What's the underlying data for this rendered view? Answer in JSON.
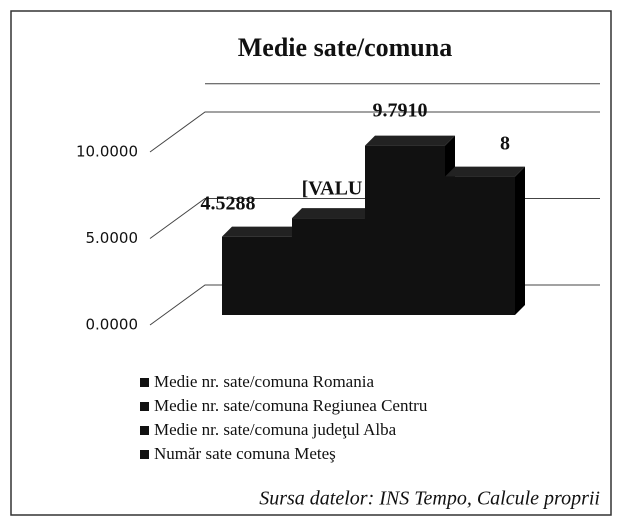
{
  "chart_data": {
    "type": "bar3d",
    "title": "Medie sate/comuna",
    "series": [
      {
        "name": "Medie nr. sate/comuna Romania",
        "color": "#111111",
        "values": [
          4.5288
        ],
        "value_labels": [
          "4.5288"
        ]
      },
      {
        "name": "Medie nr. sate/comuna Regiunea Centru",
        "color": "#111111",
        "values": [
          5.6
        ],
        "value_labels": [
          "[VALU"
        ]
      },
      {
        "name": "Medie nr. sate/comuna judeţul Alba",
        "color": "#111111",
        "values": [
          9.791
        ],
        "value_labels": [
          "9.7910"
        ]
      },
      {
        "name": "Număr sate comuna Meteş",
        "color": "#111111",
        "values": [
          8
        ],
        "value_labels": [
          "8"
        ]
      }
    ],
    "ylim": [
      0,
      12.5
    ],
    "yticks": [
      {
        "value": 0,
        "label": "0.0000"
      },
      {
        "value": 5,
        "label": "5.0000"
      },
      {
        "value": 10,
        "label": "10.0000"
      }
    ],
    "grid": true,
    "source": "Sursa datelor: INS Tempo, Calcule proprii"
  }
}
